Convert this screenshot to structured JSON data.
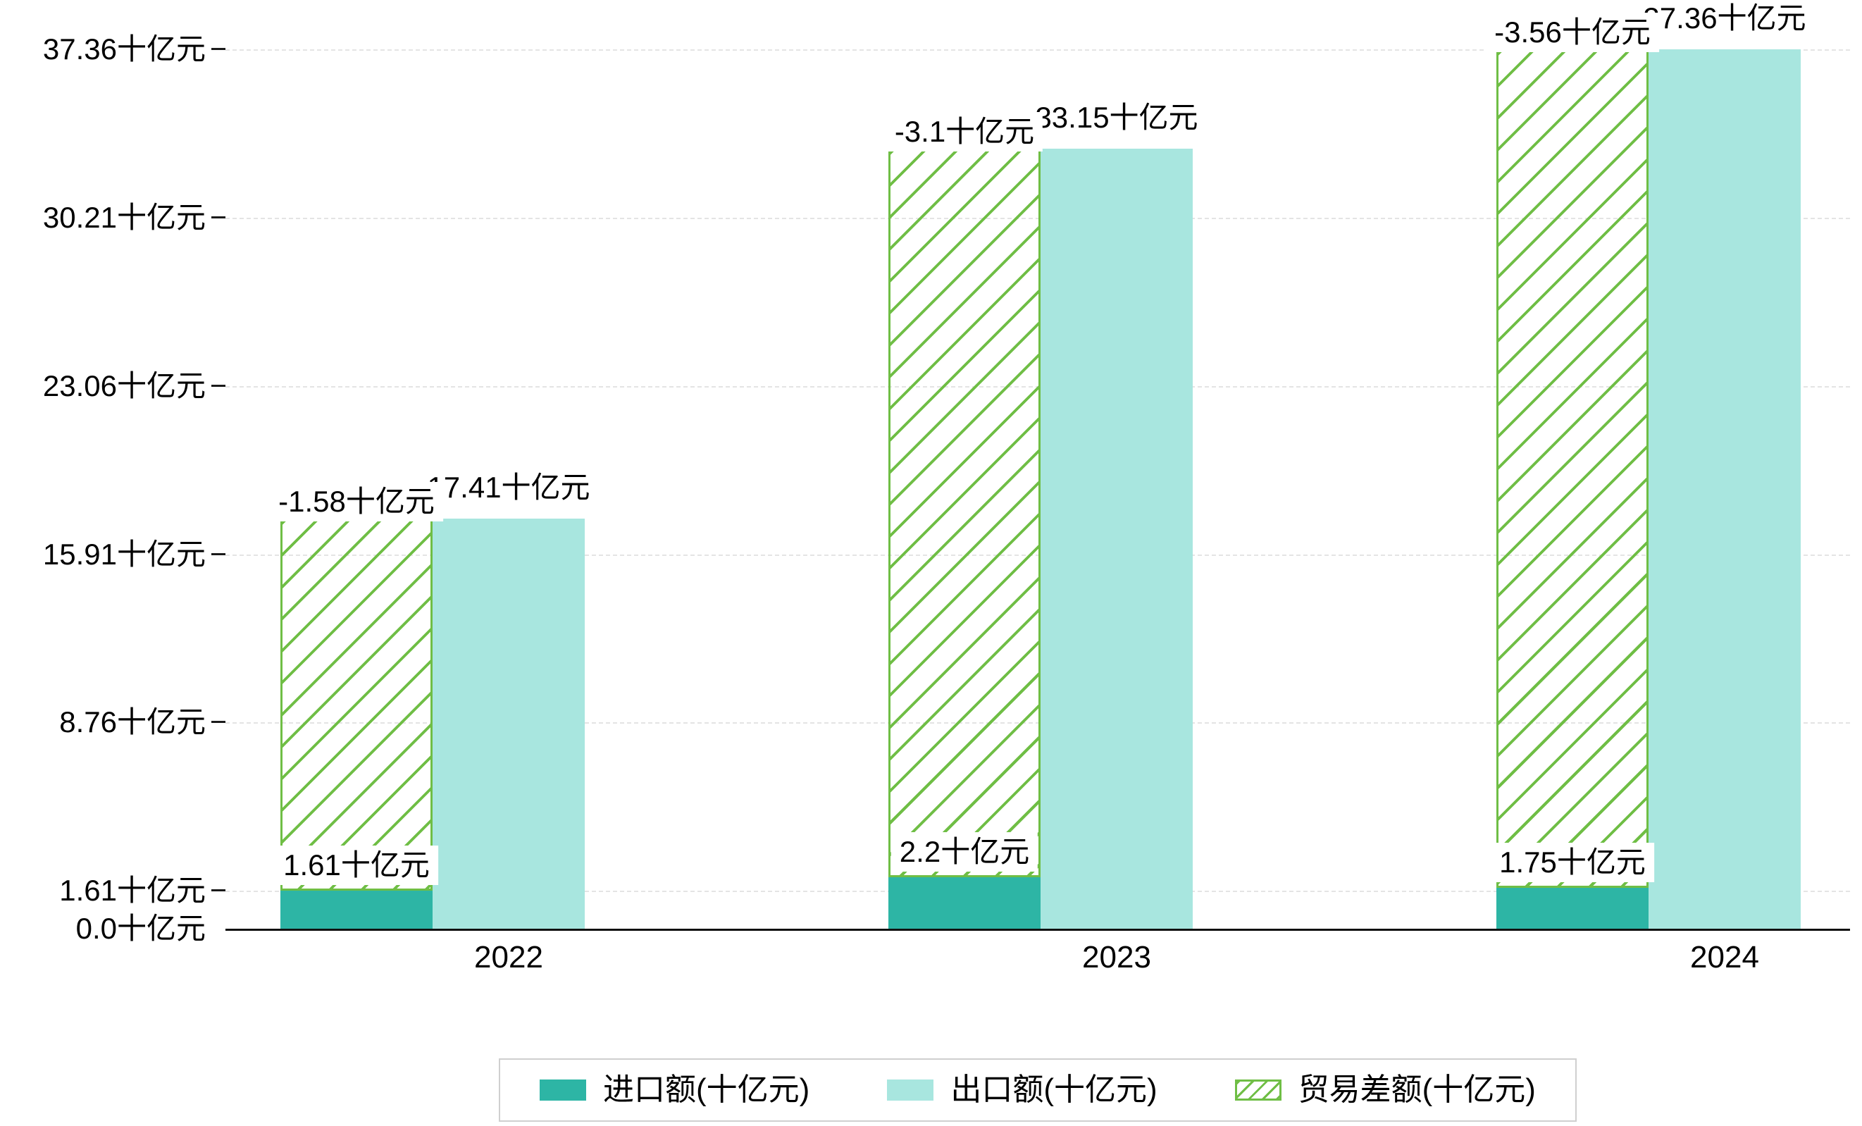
{
  "chart_data": {
    "type": "bar",
    "categories": [
      "2022",
      "2023",
      "2024"
    ],
    "series": [
      {
        "name": "进口额(十亿元)",
        "values": [
          1.61,
          2.2,
          1.75
        ],
        "labels": [
          "1.61十亿元",
          "2.2十亿元",
          "1.75十亿元"
        ],
        "style": "solid"
      },
      {
        "name": "出口额(十亿元)",
        "values": [
          17.41,
          33.15,
          37.36
        ],
        "labels": [
          "17.41十亿元",
          "33.15十亿元",
          "37.36十亿元"
        ],
        "style": "solid"
      },
      {
        "name": "贸易差额(十亿元)",
        "values": [
          -1.58,
          -3.1,
          -3.56
        ],
        "labels": [
          "-1.58十亿元",
          "-3.1十亿元",
          "-3.56十亿元"
        ],
        "style": "hatched",
        "bar_span": "import_to_export"
      }
    ],
    "y_ticks": [
      {
        "value": 0.0,
        "label": "0.0十亿元"
      },
      {
        "value": 1.61,
        "label": "1.61十亿元"
      },
      {
        "value": 8.76,
        "label": "8.76十亿元"
      },
      {
        "value": 15.91,
        "label": "15.91十亿元"
      },
      {
        "value": 23.06,
        "label": "23.06十亿元"
      },
      {
        "value": 30.21,
        "label": "30.21十亿元"
      },
      {
        "value": 37.36,
        "label": "37.36十亿元"
      }
    ],
    "ylim": [
      0,
      38.4
    ],
    "xlabel": "",
    "ylabel": "",
    "title": "",
    "grid": "dashed-horizontal",
    "legend_position": "bottom-center",
    "legend": [
      "进口额(十亿元)",
      "出口额(十亿元)",
      "贸易差额(十亿元)"
    ]
  },
  "colors": {
    "import_bar": "#2db5a5",
    "export_bar": "#a8e6df",
    "balance_hatch": "#6fbe45",
    "axis": "#111111",
    "gridline": "#e4e4e4",
    "label_bg": "#ffffff",
    "text": "#000000",
    "legend_border": "#cfcfcf"
  }
}
